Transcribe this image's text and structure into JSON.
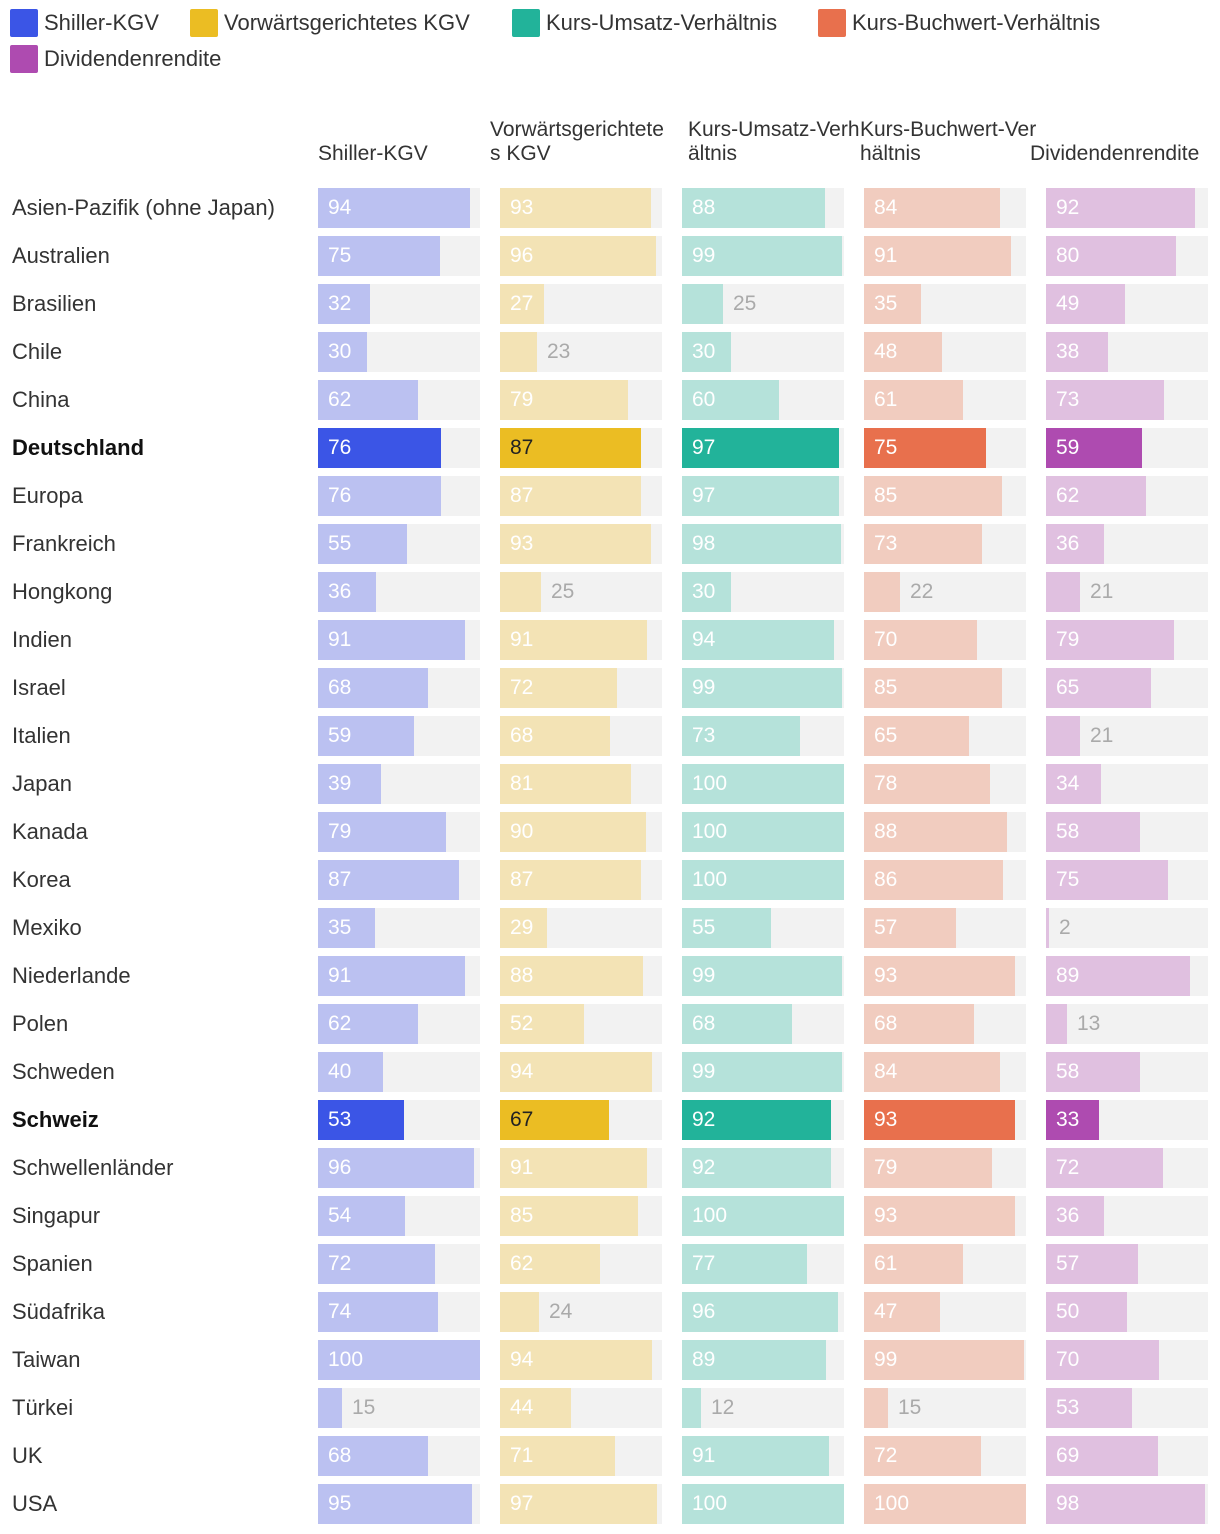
{
  "chart_data": {
    "type": "bar",
    "orientation": "horizontal-small-multiples",
    "title": "",
    "xlim": [
      0,
      100
    ],
    "legend": [
      {
        "name": "Shiller-KGV",
        "color": "#3b55e6"
      },
      {
        "name": "Vorwärtsgerichtetes KGV",
        "color": "#ebbd23"
      },
      {
        "name": "Kurs-Umsatz-Verhältnis",
        "color": "#22b39a"
      },
      {
        "name": "Kurs-Buchwert-Verhältnis",
        "color": "#e8704d"
      },
      {
        "name": "Dividendenrendite",
        "color": "#ae4bb0"
      }
    ],
    "columns": [
      {
        "header": "Shiller-KGV",
        "color": "#3b55e6",
        "light_color": "#bbc1f1"
      },
      {
        "header": "Vorwärtsgerichtetes KGV",
        "color": "#ebbd23",
        "light_color": "#f3e3b5"
      },
      {
        "header": "Kurs-Umsatz-Verhältnis",
        "color": "#22b39a",
        "light_color": "#b5e2da"
      },
      {
        "header": "Kurs-Buchwert-Verhältnis",
        "color": "#e8704d",
        "light_color": "#f1ccbf"
      },
      {
        "header": "Dividendenrendite",
        "color": "#ae4bb0",
        "light_color": "#e0c0e0"
      }
    ],
    "highlighted": [
      "Deutschland",
      "Schweiz"
    ],
    "rows": [
      {
        "label": "Asien-Pazifik (ohne Japan)",
        "values": [
          94,
          93,
          88,
          84,
          92
        ]
      },
      {
        "label": "Australien",
        "values": [
          75,
          96,
          99,
          91,
          80
        ]
      },
      {
        "label": "Brasilien",
        "values": [
          32,
          27,
          25,
          35,
          49
        ]
      },
      {
        "label": "Chile",
        "values": [
          30,
          23,
          30,
          48,
          38
        ]
      },
      {
        "label": "China",
        "values": [
          62,
          79,
          60,
          61,
          73
        ]
      },
      {
        "label": "Deutschland",
        "values": [
          76,
          87,
          97,
          75,
          59
        ]
      },
      {
        "label": "Europa",
        "values": [
          76,
          87,
          97,
          85,
          62
        ]
      },
      {
        "label": "Frankreich",
        "values": [
          55,
          93,
          98,
          73,
          36
        ]
      },
      {
        "label": "Hongkong",
        "values": [
          36,
          25,
          30,
          22,
          21
        ]
      },
      {
        "label": "Indien",
        "values": [
          91,
          91,
          94,
          70,
          79
        ]
      },
      {
        "label": "Israel",
        "values": [
          68,
          72,
          99,
          85,
          65
        ]
      },
      {
        "label": "Italien",
        "values": [
          59,
          68,
          73,
          65,
          21
        ]
      },
      {
        "label": "Japan",
        "values": [
          39,
          81,
          100,
          78,
          34
        ]
      },
      {
        "label": "Kanada",
        "values": [
          79,
          90,
          100,
          88,
          58
        ]
      },
      {
        "label": "Korea",
        "values": [
          87,
          87,
          100,
          86,
          75
        ]
      },
      {
        "label": "Mexiko",
        "values": [
          35,
          29,
          55,
          57,
          2
        ]
      },
      {
        "label": "Niederlande",
        "values": [
          91,
          88,
          99,
          93,
          89
        ]
      },
      {
        "label": "Polen",
        "values": [
          62,
          52,
          68,
          68,
          13
        ]
      },
      {
        "label": "Schweden",
        "values": [
          40,
          94,
          99,
          84,
          58
        ]
      },
      {
        "label": "Schweiz",
        "values": [
          53,
          67,
          92,
          93,
          33
        ]
      },
      {
        "label": "Schwellenländer",
        "values": [
          96,
          91,
          92,
          79,
          72
        ]
      },
      {
        "label": "Singapur",
        "values": [
          54,
          85,
          100,
          93,
          36
        ]
      },
      {
        "label": "Spanien",
        "values": [
          72,
          62,
          77,
          61,
          57
        ]
      },
      {
        "label": "Südafrika",
        "values": [
          74,
          24,
          96,
          47,
          50
        ]
      },
      {
        "label": "Taiwan",
        "values": [
          100,
          94,
          89,
          99,
          70
        ]
      },
      {
        "label": "Türkei",
        "values": [
          15,
          44,
          12,
          15,
          53
        ]
      },
      {
        "label": "UK",
        "values": [
          68,
          71,
          91,
          72,
          69
        ]
      },
      {
        "label": "USA",
        "values": [
          95,
          97,
          100,
          100,
          98
        ]
      }
    ]
  }
}
